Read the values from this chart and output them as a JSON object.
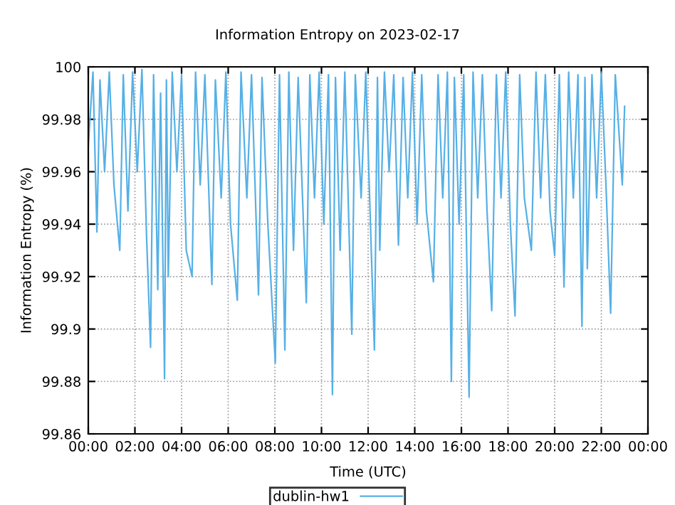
{
  "chart_data": {
    "type": "line",
    "subtitle": "Information Entropy on 2023-02-17",
    "xlabel": "Time (UTC)",
    "ylabel": "Information Entropy (%)",
    "x": [
      0,
      0.2,
      0.37,
      0.5,
      0.7,
      0.9,
      1.1,
      1.35,
      1.5,
      1.7,
      1.9,
      2.1,
      2.3,
      2.5,
      2.67,
      2.8,
      2.98,
      3.1,
      3.27,
      3.35,
      3.43,
      3.6,
      3.8,
      4.0,
      4.2,
      4.45,
      4.6,
      4.8,
      5.0,
      5.3,
      5.45,
      5.7,
      5.9,
      6.1,
      6.39,
      6.55,
      6.8,
      7.0,
      7.3,
      7.45,
      7.7,
      8.02,
      8.2,
      8.43,
      8.6,
      8.8,
      9.0,
      9.35,
      9.5,
      9.7,
      9.9,
      10.1,
      10.3,
      10.47,
      10.6,
      10.8,
      11.0,
      11.3,
      11.45,
      11.7,
      11.9,
      12.1,
      12.27,
      12.4,
      12.5,
      12.7,
      12.9,
      13.1,
      13.3,
      13.5,
      13.7,
      13.9,
      14.1,
      14.3,
      14.5,
      14.8,
      15.0,
      15.2,
      15.4,
      15.57,
      15.7,
      15.9,
      16.1,
      16.33,
      16.5,
      16.7,
      16.9,
      17.1,
      17.3,
      17.5,
      17.7,
      17.9,
      18.1,
      18.3,
      18.5,
      18.7,
      19.0,
      19.2,
      19.4,
      19.6,
      19.8,
      20.0,
      20.2,
      20.4,
      20.6,
      20.8,
      21.0,
      21.17,
      21.3,
      21.4,
      21.6,
      21.8,
      22.0,
      22.2,
      22.4,
      22.6,
      22.9,
      23.0
    ],
    "series": [
      {
        "name": "dublin-hw1",
        "color": "#56b0e6",
        "values": [
          99.97,
          99.998,
          99.937,
          99.995,
          99.96,
          99.998,
          99.955,
          99.93,
          99.997,
          99.945,
          99.998,
          99.96,
          99.999,
          99.935,
          99.893,
          99.997,
          99.915,
          99.99,
          99.881,
          99.995,
          99.92,
          99.998,
          99.96,
          99.997,
          99.93,
          99.92,
          99.998,
          99.955,
          99.997,
          99.917,
          99.995,
          99.95,
          99.998,
          99.94,
          99.911,
          99.998,
          99.95,
          99.997,
          99.913,
          99.996,
          99.94,
          99.887,
          99.997,
          99.892,
          99.998,
          99.93,
          99.996,
          99.91,
          99.997,
          99.95,
          99.998,
          99.94,
          99.997,
          99.875,
          99.996,
          99.93,
          99.998,
          99.898,
          99.997,
          99.95,
          99.998,
          99.94,
          99.892,
          99.996,
          99.93,
          99.998,
          99.96,
          99.997,
          99.932,
          99.996,
          99.95,
          99.998,
          99.94,
          99.997,
          99.945,
          99.918,
          99.997,
          99.95,
          99.998,
          99.88,
          99.996,
          99.94,
          99.997,
          99.874,
          99.998,
          99.95,
          99.997,
          99.945,
          99.907,
          99.997,
          99.95,
          99.998,
          99.94,
          99.905,
          99.997,
          99.95,
          99.93,
          99.998,
          99.95,
          99.997,
          99.945,
          99.928,
          99.997,
          99.916,
          99.998,
          99.95,
          99.997,
          99.901,
          99.996,
          99.923,
          99.997,
          99.95,
          99.998,
          99.955,
          99.906,
          99.997,
          99.955,
          99.985
        ]
      }
    ],
    "xlim": [
      0,
      24
    ],
    "xticks": [
      {
        "value": 0,
        "label": "00:00"
      },
      {
        "value": 2,
        "label": "02:00"
      },
      {
        "value": 4,
        "label": "04:00"
      },
      {
        "value": 6,
        "label": "06:00"
      },
      {
        "value": 8,
        "label": "08:00"
      },
      {
        "value": 10,
        "label": "10:00"
      },
      {
        "value": 12,
        "label": "12:00"
      },
      {
        "value": 14,
        "label": "14:00"
      },
      {
        "value": 16,
        "label": "16:00"
      },
      {
        "value": 18,
        "label": "18:00"
      },
      {
        "value": 20,
        "label": "20:00"
      },
      {
        "value": 22,
        "label": "22:00"
      },
      {
        "value": 24,
        "label": "00:00"
      }
    ],
    "ylim": [
      99.86,
      100
    ],
    "yticks": [
      99.86,
      99.88,
      99.9,
      99.92,
      99.94,
      99.96,
      99.98,
      100
    ],
    "grid": true,
    "legend": "bottom",
    "marker": "none",
    "line_style": "solid"
  }
}
